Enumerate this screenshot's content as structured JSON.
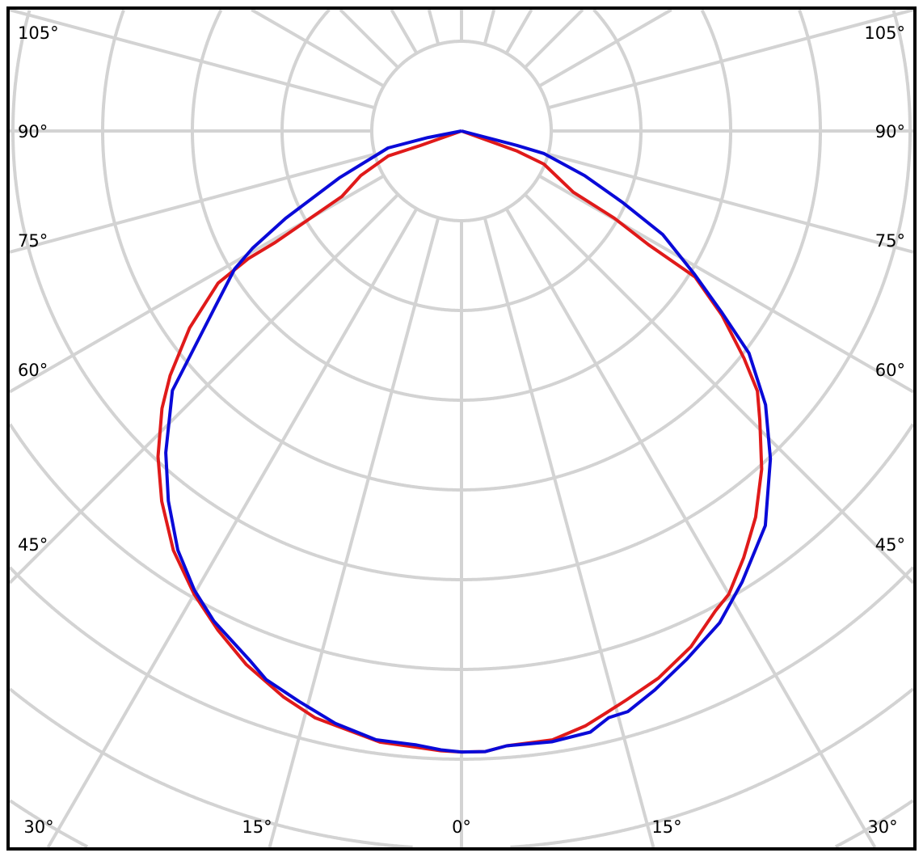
{
  "chart_data": {
    "type": "polar",
    "orientation": "0° at bottom, angles increase toward both sides",
    "angle_labels": {
      "left": [
        "105°",
        "90°",
        "75°",
        "60°",
        "45°"
      ],
      "right": [
        "105°",
        "90°",
        "75°",
        "60°",
        "45°"
      ],
      "bottom": [
        "30°",
        "15°",
        "0°",
        "15°",
        "30°"
      ]
    },
    "angular_grid_step_deg": 15,
    "radial_unit": "grid rings (no radial scale printed)",
    "radial_grid_rings": 10,
    "grid": true,
    "grid_color": "#d3d3d3",
    "legend": "none",
    "series": [
      {
        "color": "#e01a1a",
        "left": [
          [
            0,
            6.92
          ],
          [
            1.9,
            6.91
          ],
          [
            7.6,
            6.87
          ],
          [
            14,
            6.74
          ],
          [
            17.5,
            6.61
          ],
          [
            22,
            6.41
          ],
          [
            26,
            6.19
          ],
          [
            30,
            5.96
          ],
          [
            34.5,
            5.67
          ],
          [
            39,
            5.31
          ],
          [
            43,
            4.96
          ],
          [
            47.2,
            4.55
          ],
          [
            50,
            4.24
          ],
          [
            54.1,
            3.74
          ],
          [
            58,
            3.2
          ],
          [
            59.1,
            2.77
          ],
          [
            59.1,
            2.42
          ],
          [
            61.3,
            1.52
          ],
          [
            66.1,
            1.23
          ],
          [
            71.2,
            0.86
          ],
          [
            70.6,
            0.49
          ],
          [
            90,
            0
          ]
        ],
        "right": [
          [
            0,
            6.92
          ],
          [
            2.2,
            6.92
          ],
          [
            4.2,
            6.87
          ],
          [
            6.3,
            6.86
          ],
          [
            8.5,
            6.86
          ],
          [
            11.8,
            6.77
          ],
          [
            14,
            6.68
          ],
          [
            16.2,
            6.6
          ],
          [
            19.8,
            6.48
          ],
          [
            24,
            6.29
          ],
          [
            27.9,
            6.05
          ],
          [
            30,
            5.96
          ],
          [
            33.5,
            5.7
          ],
          [
            37.3,
            5.41
          ],
          [
            41.6,
            5.04
          ],
          [
            45.9,
            4.63
          ],
          [
            48.7,
            4.39
          ],
          [
            51.2,
            4.04
          ],
          [
            54.7,
            3.56
          ],
          [
            58,
            3.07
          ],
          [
            58.7,
            2.44
          ],
          [
            60.3,
            1.96
          ],
          [
            61.3,
            1.42
          ],
          [
            68.1,
            0.99
          ],
          [
            70.1,
            0.66
          ],
          [
            90,
            0
          ]
        ]
      },
      {
        "color": "#0a0ad8",
        "left": [
          [
            0,
            6.92
          ],
          [
            1.9,
            6.9
          ],
          [
            4.2,
            6.86
          ],
          [
            8,
            6.85
          ],
          [
            12,
            6.75
          ],
          [
            15.9,
            6.61
          ],
          [
            19.6,
            6.49
          ],
          [
            21.7,
            6.36
          ],
          [
            26.8,
            6.12
          ],
          [
            30.2,
            5.92
          ],
          [
            34.1,
            5.64
          ],
          [
            38.4,
            5.26
          ],
          [
            42.6,
            4.87
          ],
          [
            48.1,
            4.33
          ],
          [
            49.8,
            4.02
          ],
          [
            54.7,
            3.35
          ],
          [
            58.7,
            2.96
          ],
          [
            60.7,
            2.67
          ],
          [
            63.6,
            2.19
          ],
          [
            69,
            1.46
          ],
          [
            77,
            0.84
          ],
          [
            78.9,
            0.38
          ],
          [
            90,
            0
          ]
        ],
        "right": [
          [
            0,
            6.92
          ],
          [
            2.2,
            6.92
          ],
          [
            4.2,
            6.87
          ],
          [
            6.3,
            6.87
          ],
          [
            8.4,
            6.88
          ],
          [
            12.1,
            6.85
          ],
          [
            14.1,
            6.74
          ],
          [
            16,
            6.73
          ],
          [
            19.1,
            6.59
          ],
          [
            23.1,
            6.4
          ],
          [
            27.7,
            6.19
          ],
          [
            31.9,
            5.92
          ],
          [
            37.6,
            5.55
          ],
          [
            43.3,
            5.02
          ],
          [
            48,
            4.56
          ],
          [
            52.3,
            4.05
          ],
          [
            55.1,
            3.54
          ],
          [
            58.4,
            3.05
          ],
          [
            62.8,
            2.52
          ],
          [
            66.1,
            1.96
          ],
          [
            70.1,
            1.46
          ],
          [
            74.7,
            0.95
          ],
          [
            75.4,
            0.64
          ],
          [
            90,
            0
          ]
        ]
      }
    ]
  }
}
